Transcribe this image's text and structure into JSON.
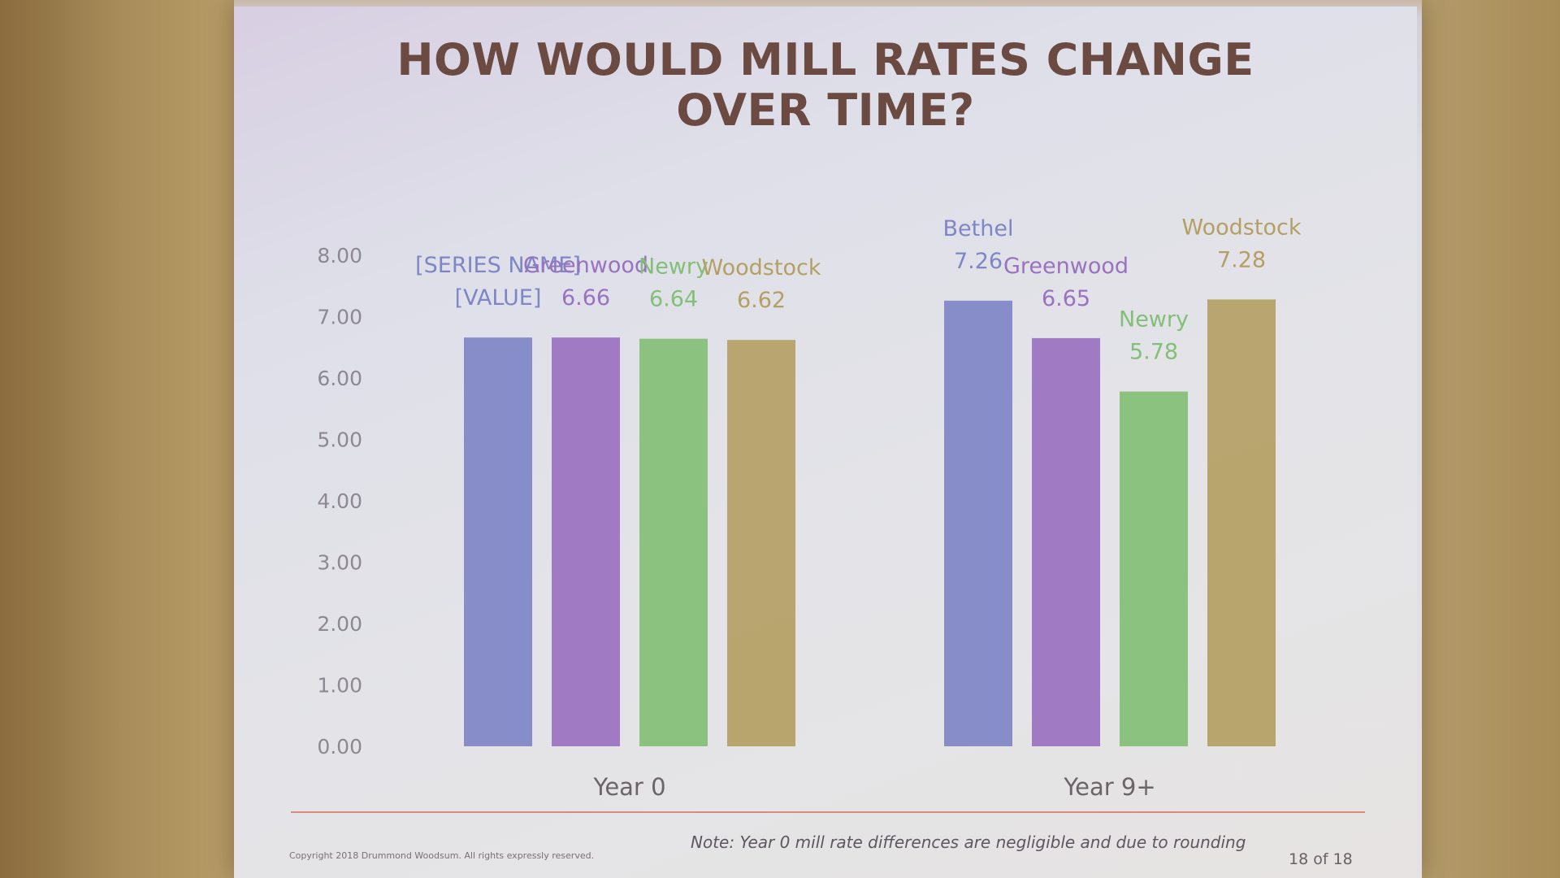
{
  "slide": {
    "title_line1": "HOW WOULD MILL RATES CHANGE",
    "title_line2": "OVER TIME?",
    "note": "Note: Year 0 mill rate differences are negligible and due to rounding",
    "copyright": "Copyright 2018 Drummond Woodsum. All rights expressly reserved.",
    "page": "18 of 18"
  },
  "chart_data": {
    "type": "bar",
    "categories": [
      "Year 0",
      "Year 9+"
    ],
    "ylim": [
      0,
      8
    ],
    "yticks": [
      "0.00",
      "1.00",
      "2.00",
      "3.00",
      "4.00",
      "5.00",
      "6.00",
      "7.00",
      "8.00"
    ],
    "grid": false,
    "series": [
      {
        "name": "Bethel",
        "color": "#7f86c6",
        "values": [
          6.66,
          7.26
        ],
        "labels": [
          [
            "[SERIES NAME]",
            "[VALUE]"
          ],
          [
            "Bethel",
            "7.26"
          ]
        ]
      },
      {
        "name": "Greenwood",
        "color": "#9a72c0",
        "values": [
          6.66,
          6.65
        ],
        "labels": [
          [
            "Greenwood",
            "6.66"
          ],
          [
            "Greenwood",
            "6.65"
          ]
        ]
      },
      {
        "name": "Newry",
        "color": "#83bf76",
        "values": [
          6.64,
          5.78
        ],
        "labels": [
          [
            "Newry",
            "6.64"
          ],
          [
            "Newry",
            "5.78"
          ]
        ]
      },
      {
        "name": "Woodstock",
        "color": "#b4a064",
        "values": [
          6.62,
          7.28
        ],
        "labels": [
          [
            "Woodstock",
            "6.62"
          ],
          [
            "Woodstock",
            "7.28"
          ]
        ]
      }
    ]
  }
}
